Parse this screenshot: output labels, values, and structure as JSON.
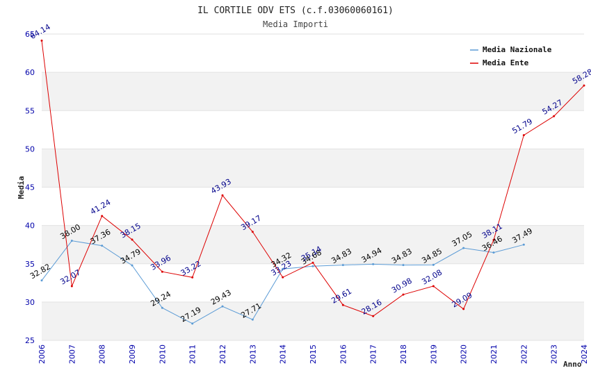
{
  "chart_data": {
    "type": "line",
    "title": "IL CORTILE ODV ETS (c.f.03060060161)",
    "subtitle": "Media Importi",
    "xlabel": "Anno",
    "ylabel": "Media",
    "x": [
      "2006",
      "2007",
      "2008",
      "2009",
      "2010",
      "2011",
      "2012",
      "2013",
      "2014",
      "2015",
      "2016",
      "2017",
      "2018",
      "2019",
      "2020",
      "2021",
      "2022",
      "2023",
      "2024"
    ],
    "ylim": [
      25,
      65
    ],
    "yticks": [
      "25",
      "30",
      "35",
      "40",
      "45",
      "50",
      "55",
      "60",
      "65"
    ],
    "grid": true,
    "legend_position": "top-right",
    "series": [
      {
        "name": "Media Nazionale",
        "color": "#5b9bd5",
        "label_color": "#000000",
        "values": [
          32.82,
          38.0,
          37.36,
          34.79,
          29.24,
          27.19,
          29.43,
          27.71,
          34.32,
          34.68,
          34.83,
          34.94,
          34.83,
          34.85,
          37.05,
          36.46,
          37.49,
          null,
          null
        ],
        "labels": [
          "32.82",
          "38.00",
          "37.36",
          "34.79",
          "29.24",
          "27.19",
          "29.43",
          "27.71",
          "34.32",
          "34.68",
          "34.83",
          "34.94",
          "34.83",
          "34.85",
          "37.05",
          "36.46",
          "37.49",
          "",
          ""
        ]
      },
      {
        "name": "Media Ente",
        "color": "#dd0000",
        "label_color": "#00008b",
        "values": [
          64.14,
          32.07,
          41.24,
          38.15,
          33.96,
          33.22,
          43.93,
          39.17,
          33.23,
          35.14,
          29.61,
          28.16,
          30.98,
          32.08,
          29.09,
          38.11,
          51.79,
          54.27,
          58.28
        ],
        "labels": [
          "64.14",
          "32.07",
          "41.24",
          "38.15",
          "33.96",
          "33.22",
          "43.93",
          "39.17",
          "33.23",
          "35.14",
          "29.61",
          "28.16",
          "30.98",
          "32.08",
          "29.09",
          "38.11",
          "51.79",
          "54.27",
          "58.28"
        ]
      }
    ]
  }
}
